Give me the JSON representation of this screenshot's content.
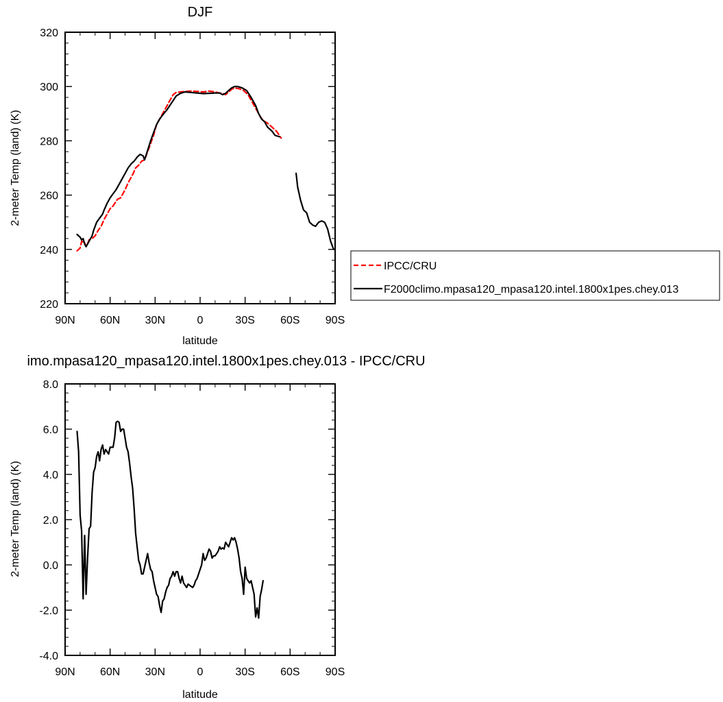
{
  "chart_data": [
    {
      "type": "line",
      "title": "DJF",
      "xlabel": "latitude",
      "ylabel": "2-meter Temp (land) (K)",
      "xlim": [
        90,
        -90
      ],
      "ylim": [
        220,
        320
      ],
      "x_ticks": [
        90,
        60,
        30,
        0,
        -30,
        -60,
        -90
      ],
      "x_tick_labels": [
        "90N",
        "60N",
        "30N",
        "0",
        "30S",
        "60S",
        "90S"
      ],
      "y_ticks": [
        220,
        240,
        260,
        280,
        300,
        320
      ],
      "y_tick_labels": [
        "220",
        "240",
        "260",
        "280",
        "300",
        "320"
      ],
      "legend_position": "right, outside plot",
      "series": [
        {
          "name": "IPCC/CRU",
          "color": "#ff0000",
          "dash": "dashed",
          "points": [
            [
              82,
              239.5
            ],
            [
              80,
              240.5
            ],
            [
              79,
              243
            ],
            [
              77,
              242.5
            ],
            [
              76,
              241
            ],
            [
              75,
              242
            ],
            [
              74,
              243.5
            ],
            [
              72,
              244
            ],
            [
              70,
              245
            ],
            [
              68,
              247
            ],
            [
              66,
              248.5
            ],
            [
              64,
              251
            ],
            [
              62,
              253
            ],
            [
              60,
              255
            ],
            [
              58,
              256
            ],
            [
              55,
              258.5
            ],
            [
              53,
              259
            ],
            [
              50,
              262
            ],
            [
              48,
              264.5
            ],
            [
              45,
              267.5
            ],
            [
              43,
              270
            ],
            [
              41,
              271
            ],
            [
              39,
              272.5
            ],
            [
              37,
              273
            ],
            [
              35,
              276
            ],
            [
              33,
              279
            ],
            [
              31,
              282
            ],
            [
              29,
              286
            ],
            [
              26,
              289
            ],
            [
              23,
              292
            ],
            [
              20,
              295
            ],
            [
              18,
              297
            ],
            [
              16,
              297.8
            ],
            [
              13,
              298
            ],
            [
              10,
              298.2
            ],
            [
              6,
              298.3
            ],
            [
              2,
              298.2
            ],
            [
              -2,
              298
            ],
            [
              -6,
              298.3
            ],
            [
              -10,
              298
            ],
            [
              -13,
              297.6
            ],
            [
              -15,
              297.5
            ],
            [
              -17,
              297
            ],
            [
              -19,
              298
            ],
            [
              -21,
              299
            ],
            [
              -23,
              299.5
            ],
            [
              -26,
              299.2
            ],
            [
              -29,
              298.5
            ],
            [
              -32,
              297
            ],
            [
              -35,
              294
            ],
            [
              -37,
              292
            ],
            [
              -40,
              289
            ],
            [
              -42,
              287.5
            ],
            [
              -45,
              286.5
            ],
            [
              -48,
              285
            ],
            [
              -51,
              283.5
            ],
            [
              -54,
              281
            ]
          ]
        },
        {
          "name": "F2000climo.mpasa120_mpasa120.intel.1800x1pes.chey.013",
          "color": "#000000",
          "dash": "solid",
          "segments": [
            [
              [
                82,
                245.5
              ],
              [
                81,
                245
              ],
              [
                80,
                244.5
              ],
              [
                79,
                243.5
              ],
              [
                78,
                244
              ],
              [
                77,
                242
              ],
              [
                76,
                241
              ],
              [
                75,
                242
              ],
              [
                74,
                243
              ],
              [
                72,
                245
              ],
              [
                71,
                247
              ],
              [
                69,
                250
              ],
              [
                67,
                251.5
              ],
              [
                65,
                253
              ],
              [
                64,
                254.5
              ],
              [
                62,
                257
              ],
              [
                60,
                259
              ],
              [
                58,
                260.5
              ],
              [
                56,
                262
              ],
              [
                54,
                264
              ],
              [
                52,
                266
              ],
              [
                50,
                268
              ],
              [
                48,
                270
              ],
              [
                46,
                271.5
              ],
              [
                44,
                272.5
              ],
              [
                42,
                274
              ],
              [
                40,
                275
              ],
              [
                38,
                274.5
              ],
              [
                37,
                273
              ],
              [
                35,
                276.5
              ],
              [
                33,
                280
              ],
              [
                31,
                283
              ],
              [
                29,
                286
              ],
              [
                27,
                288
              ],
              [
                25,
                289.5
              ],
              [
                22,
                291.5
              ],
              [
                19,
                294
              ],
              [
                16,
                296.5
              ],
              [
                13,
                297.5
              ],
              [
                10,
                298
              ],
              [
                6,
                297.8
              ],
              [
                2,
                297.6
              ],
              [
                -2,
                297.4
              ],
              [
                -6,
                297.5
              ],
              [
                -10,
                297.6
              ],
              [
                -13,
                297.6
              ],
              [
                -15,
                297
              ],
              [
                -17,
                297.5
              ],
              [
                -19,
                298.5
              ],
              [
                -21,
                299.5
              ],
              [
                -23,
                300
              ],
              [
                -25,
                300
              ],
              [
                -28,
                299.5
              ],
              [
                -31,
                298.5
              ],
              [
                -34,
                296
              ],
              [
                -37,
                293
              ],
              [
                -39,
                290
              ],
              [
                -41,
                288
              ],
              [
                -43,
                287
              ],
              [
                -45,
                285
              ],
              [
                -48,
                283.5
              ],
              [
                -50,
                282
              ],
              [
                -53,
                281.5
              ]
            ],
            [
              [
                -64,
                268
              ],
              [
                -65,
                263
              ],
              [
                -67,
                258
              ],
              [
                -69,
                254.5
              ],
              [
                -71,
                253.5
              ],
              [
                -73,
                250
              ],
              [
                -75,
                249
              ],
              [
                -77,
                248.5
              ],
              [
                -79,
                250
              ],
              [
                -81,
                250.5
              ],
              [
                -83,
                250
              ],
              [
                -85,
                247.5
              ],
              [
                -87,
                243
              ],
              [
                -89,
                240
              ],
              [
                -90,
                240
              ]
            ]
          ]
        }
      ]
    },
    {
      "type": "line",
      "title": "imo.mpasa120_mpasa120.intel.1800x1pes.chey.013 - IPCC/CRU",
      "xlabel": "latitude",
      "ylabel": "2-meter Temp (land) (K)",
      "xlim": [
        90,
        -90
      ],
      "ylim": [
        -4.0,
        8.0
      ],
      "x_ticks": [
        90,
        60,
        30,
        0,
        -30,
        -60,
        -90
      ],
      "x_tick_labels": [
        "90N",
        "60N",
        "30N",
        "0",
        "30S",
        "60S",
        "90S"
      ],
      "y_ticks": [
        -4,
        -2,
        0,
        2,
        4,
        6,
        8
      ],
      "y_tick_labels": [
        "-4.0",
        "-2.0",
        "0.0",
        "2.0",
        "4.0",
        "6.0",
        "8.0"
      ],
      "series": [
        {
          "color": "#000000",
          "dash": "solid",
          "points": [
            [
              82,
              5.9
            ],
            [
              81,
              5.0
            ],
            [
              80,
              2.2
            ],
            [
              79,
              1.5
            ],
            [
              78,
              -1.5
            ],
            [
              77,
              1.3
            ],
            [
              76,
              -1.3
            ],
            [
              75,
              0.3
            ],
            [
              74,
              1.6
            ],
            [
              73,
              1.7
            ],
            [
              72,
              3.2
            ],
            [
              71,
              4.1
            ],
            [
              70,
              4.3
            ],
            [
              69,
              4.8
            ],
            [
              68,
              5.0
            ],
            [
              67,
              4.6
            ],
            [
              66,
              5.1
            ],
            [
              65,
              5.3
            ],
            [
              64,
              4.9
            ],
            [
              63,
              5.1
            ],
            [
              62,
              5.0
            ],
            [
              61,
              4.9
            ],
            [
              60,
              5.2
            ],
            [
              58,
              5.2
            ],
            [
              57,
              5.6
            ],
            [
              56,
              6.3
            ],
            [
              55,
              6.35
            ],
            [
              54,
              6.3
            ],
            [
              53,
              5.9
            ],
            [
              52,
              6.0
            ],
            [
              51,
              6.0
            ],
            [
              50,
              5.6
            ],
            [
              49,
              5.2
            ],
            [
              48,
              5.0
            ],
            [
              47,
              4.5
            ],
            [
              46,
              3.9
            ],
            [
              45,
              3.4
            ],
            [
              44,
              2.5
            ],
            [
              43,
              1.4
            ],
            [
              42,
              0.8
            ],
            [
              41,
              0.2
            ],
            [
              40,
              0.0
            ],
            [
              39,
              -0.4
            ],
            [
              38,
              -0.4
            ],
            [
              37,
              -0.1
            ],
            [
              36,
              0.2
            ],
            [
              35,
              0.5
            ],
            [
              34,
              0.1
            ],
            [
              33,
              -0.2
            ],
            [
              32,
              -0.3
            ],
            [
              31,
              -0.7
            ],
            [
              30,
              -1.0
            ],
            [
              29,
              -1.3
            ],
            [
              28,
              -1.4
            ],
            [
              27,
              -1.8
            ],
            [
              26,
              -2.1
            ],
            [
              25,
              -1.6
            ],
            [
              24,
              -1.5
            ],
            [
              23,
              -1.2
            ],
            [
              22,
              -1.0
            ],
            [
              21,
              -0.9
            ],
            [
              20,
              -0.6
            ],
            [
              19,
              -0.5
            ],
            [
              18,
              -0.3
            ],
            [
              17,
              -0.5
            ],
            [
              16,
              -0.3
            ],
            [
              15,
              -0.3
            ],
            [
              14,
              -0.6
            ],
            [
              13,
              -0.8
            ],
            [
              12,
              -0.5
            ],
            [
              11,
              -0.8
            ],
            [
              10,
              -0.9
            ],
            [
              9,
              -1.0
            ],
            [
              8,
              -0.85
            ],
            [
              7,
              -0.9
            ],
            [
              6,
              -0.95
            ],
            [
              5,
              -1.0
            ],
            [
              4,
              -0.9
            ],
            [
              3,
              -0.7
            ],
            [
              2,
              -0.6
            ],
            [
              1,
              -0.4
            ],
            [
              0,
              -0.2
            ],
            [
              -1,
              0.0
            ],
            [
              -2,
              0.5
            ],
            [
              -3,
              0.2
            ],
            [
              -4,
              0.3
            ],
            [
              -5,
              0.5
            ],
            [
              -6,
              0.7
            ],
            [
              -7,
              0.6
            ],
            [
              -8,
              0.3
            ],
            [
              -9,
              0.4
            ],
            [
              -10,
              0.4
            ],
            [
              -12,
              0.6
            ],
            [
              -13,
              0.8
            ],
            [
              -14,
              0.7
            ],
            [
              -15,
              0.75
            ],
            [
              -16,
              0.7
            ],
            [
              -17,
              1.0
            ],
            [
              -18,
              0.9
            ],
            [
              -19,
              0.8
            ],
            [
              -20,
              1.0
            ],
            [
              -21,
              1.2
            ],
            [
              -22,
              1.1
            ],
            [
              -23,
              1.2
            ],
            [
              -24,
              1.0
            ],
            [
              -25,
              0.7
            ],
            [
              -26,
              0.3
            ],
            [
              -27,
              -0.3
            ],
            [
              -28,
              -0.6
            ],
            [
              -29,
              -1.3
            ],
            [
              -30,
              -0.1
            ],
            [
              -31,
              -0.6
            ],
            [
              -32,
              -0.7
            ],
            [
              -33,
              -0.8
            ],
            [
              -34,
              -0.7
            ],
            [
              -35,
              -1.0
            ],
            [
              -36,
              -1.3
            ],
            [
              -37,
              -2.3
            ],
            [
              -38,
              -1.9
            ],
            [
              -39,
              -2.35
            ],
            [
              -40,
              -1.4
            ],
            [
              -41,
              -1.1
            ],
            [
              -42,
              -0.7
            ]
          ]
        }
      ]
    }
  ]
}
